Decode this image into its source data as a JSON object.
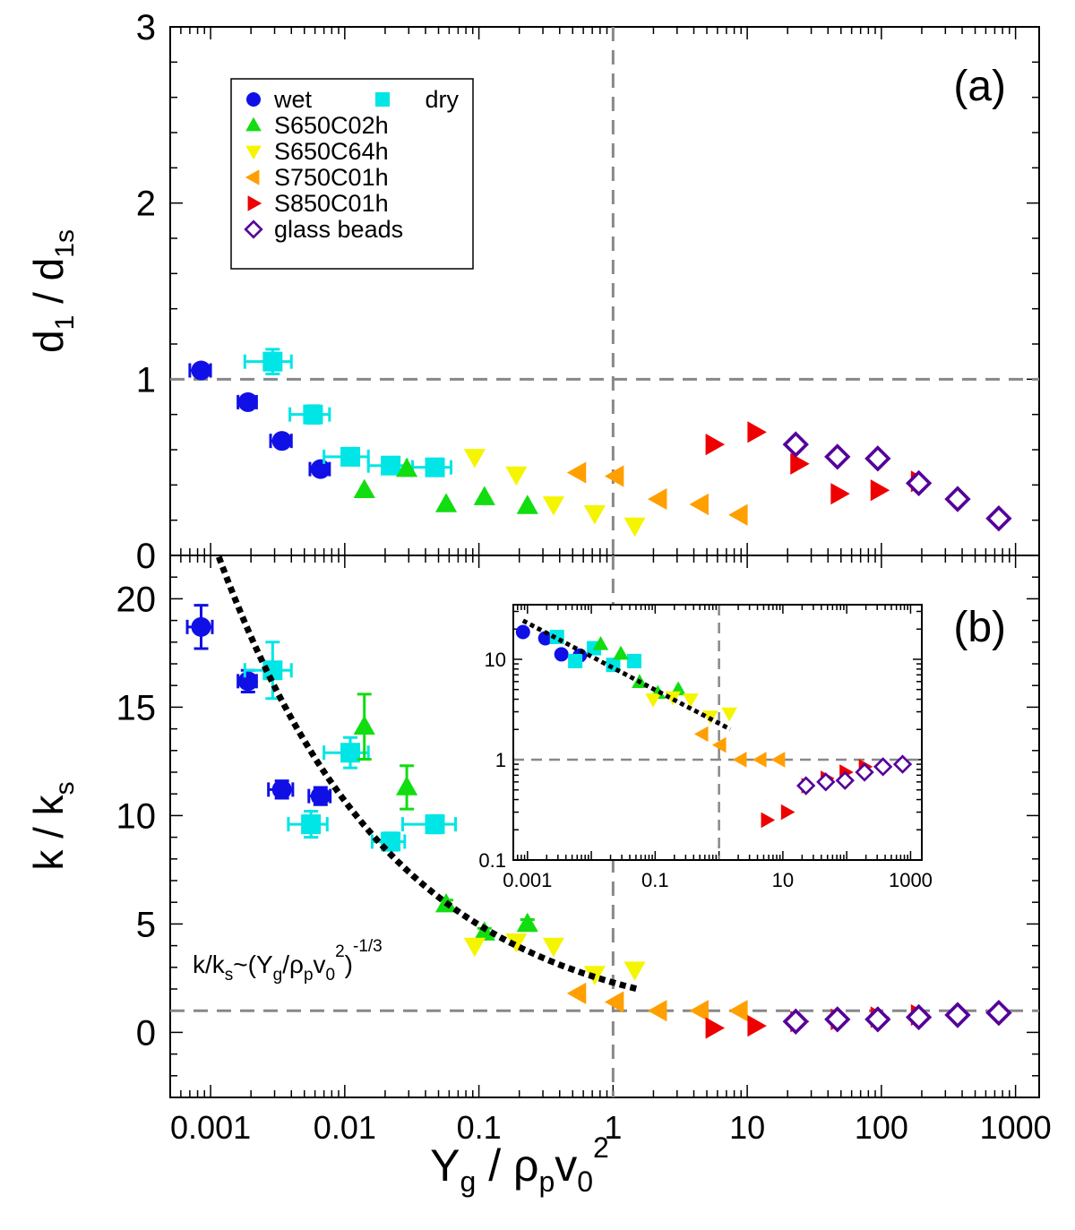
{
  "colors": {
    "wet": "#1010e6",
    "dry": "#00e5e5",
    "S650C02h": "#11dd11",
    "S650C64h": "#f5f500",
    "S750C01h": "#ff9f00",
    "S850C01h": "#ee0000",
    "glass beads": "#550099",
    "reference": "#888888"
  },
  "chart_data": [
    {
      "type": "scatter",
      "panel_label": "(a)",
      "ylabel": "d1 / d1s",
      "xscale": "log",
      "xlim": [
        0.0005,
        1500
      ],
      "ylim": [
        0,
        3
      ],
      "yticks": [
        "0",
        "1",
        "2",
        "3"
      ],
      "reference_lines": {
        "x": 1,
        "y": 1
      },
      "legend": {
        "placement": "top-left",
        "rows": [
          [
            "wet",
            "dry"
          ],
          [
            "S650C02h"
          ],
          [
            "S650C64h"
          ],
          [
            "S750C01h"
          ],
          [
            "S850C01h"
          ],
          [
            "glass beads"
          ]
        ]
      },
      "series": [
        {
          "name": "wet",
          "marker": "circle",
          "points": [
            [
              0.00085,
              1.05,
              0.00015,
              0.03
            ],
            [
              0.0019,
              0.87,
              0.0003,
              0.03
            ],
            [
              0.0034,
              0.65,
              0.0006,
              0.03
            ],
            [
              0.0066,
              0.49,
              0.0011,
              0.03
            ]
          ]
        },
        {
          "name": "dry",
          "marker": "square",
          "points": [
            [
              0.0029,
              1.1,
              0.0011,
              0.07
            ],
            [
              0.0058,
              0.8,
              0.0019,
              0.05
            ],
            [
              0.011,
              0.56,
              0.004,
              0.04
            ],
            [
              0.022,
              0.51,
              0.007,
              0.04
            ],
            [
              0.047,
              0.5,
              0.015,
              0.04
            ]
          ]
        },
        {
          "name": "S650C02h",
          "marker": "triangle-up",
          "points": [
            [
              0.014,
              0.37
            ],
            [
              0.029,
              0.49
            ],
            [
              0.057,
              0.29
            ],
            [
              0.11,
              0.33
            ],
            [
              0.23,
              0.28
            ]
          ]
        },
        {
          "name": "S650C64h",
          "marker": "triangle-down",
          "points": [
            [
              0.093,
              0.56
            ],
            [
              0.19,
              0.46
            ],
            [
              0.36,
              0.29
            ],
            [
              0.73,
              0.24
            ],
            [
              1.45,
              0.17
            ]
          ]
        },
        {
          "name": "S750C01h",
          "marker": "triangle-left",
          "points": [
            [
              0.55,
              0.47
            ],
            [
              1.05,
              0.45
            ],
            [
              2.2,
              0.32
            ],
            [
              4.5,
              0.29
            ],
            [
              8.8,
              0.23
            ]
          ]
        },
        {
          "name": "S850C01h",
          "marker": "triangle-right",
          "points": [
            [
              5.6,
              0.63
            ],
            [
              11.5,
              0.7
            ],
            [
              24,
              0.52
            ],
            [
              48,
              0.35
            ],
            [
              95,
              0.37
            ],
            [
              190,
              0.42
            ]
          ]
        },
        {
          "name": "glass beads",
          "marker": "diamond-open",
          "points": [
            [
              23,
              0.63
            ],
            [
              47,
              0.56
            ],
            [
              94,
              0.55
            ],
            [
              190,
              0.41
            ],
            [
              370,
              0.32
            ],
            [
              750,
              0.21
            ]
          ]
        }
      ]
    },
    {
      "type": "scatter",
      "panel_label": "(b)",
      "ylabel": "k / ks",
      "xlabel": "Yg / ρpv0²",
      "xscale": "log",
      "xlim": [
        0.0005,
        1500
      ],
      "ylim": [
        -3,
        22
      ],
      "xticks": [
        "0.001",
        "0.01",
        "0.1",
        "1",
        "10",
        "100",
        "1000"
      ],
      "yticks": [
        "0",
        "5",
        "10",
        "15",
        "20"
      ],
      "reference_lines": {
        "x": 1,
        "y": 1
      },
      "fit_annotation": "k/ks~(Yg/ρpv0²)^-1/3",
      "fit": {
        "exponent": -0.3333,
        "prefactor": 2.3,
        "x_range": [
          0.00085,
          1.5
        ]
      },
      "series": [
        {
          "name": "wet",
          "marker": "circle",
          "points": [
            [
              0.00085,
              18.7,
              0.00018,
              1.0
            ],
            [
              0.0019,
              16.2,
              0.0003,
              0.5
            ],
            [
              0.0034,
              11.2,
              0.0007,
              0.4
            ],
            [
              0.0066,
              10.9,
              0.0012,
              0.4
            ]
          ]
        },
        {
          "name": "dry",
          "marker": "square",
          "points": [
            [
              0.0029,
              16.7,
              0.0011,
              1.3
            ],
            [
              0.0056,
              9.6,
              0.0018,
              0.6
            ],
            [
              0.011,
              12.9,
              0.004,
              0.7
            ],
            [
              0.022,
              8.8,
              0.006,
              0.4
            ],
            [
              0.047,
              9.6,
              0.02,
              0.4
            ]
          ]
        },
        {
          "name": "S650C02h",
          "marker": "triangle-up",
          "points": [
            [
              0.014,
              14.1,
              0,
              1.5
            ],
            [
              0.029,
              11.3,
              0,
              1.0
            ],
            [
              0.057,
              5.9,
              0,
              0.2
            ],
            [
              0.11,
              4.6,
              0,
              0.2
            ],
            [
              0.23,
              5.0,
              0,
              0.2
            ]
          ]
        },
        {
          "name": "S650C64h",
          "marker": "triangle-down",
          "points": [
            [
              0.093,
              4.0
            ],
            [
              0.19,
              4.2
            ],
            [
              0.36,
              4.0
            ],
            [
              0.73,
              2.7
            ],
            [
              1.45,
              2.9
            ]
          ]
        },
        {
          "name": "S750C01h",
          "marker": "triangle-left",
          "points": [
            [
              0.55,
              1.8
            ],
            [
              1.05,
              1.4
            ],
            [
              2.2,
              1.0
            ],
            [
              4.5,
              1.0
            ],
            [
              8.8,
              1.0
            ]
          ]
        },
        {
          "name": "S850C01h",
          "marker": "triangle-right",
          "points": [
            [
              5.6,
              0.2
            ],
            [
              11.5,
              0.3
            ],
            [
              24,
              0.5
            ],
            [
              48,
              0.6
            ],
            [
              95,
              0.7
            ],
            [
              190,
              0.8
            ]
          ]
        },
        {
          "name": "glass beads",
          "marker": "diamond-open",
          "points": [
            [
              23,
              0.5
            ],
            [
              47,
              0.6
            ],
            [
              94,
              0.6
            ],
            [
              190,
              0.7
            ],
            [
              370,
              0.8
            ],
            [
              750,
              0.9
            ]
          ]
        }
      ]
    },
    {
      "type": "scatter",
      "panel_label": "inset",
      "xscale": "log",
      "yscale": "log",
      "xlim": [
        0.0006,
        1500
      ],
      "ylim": [
        0.1,
        35
      ],
      "xticks": [
        "0.001",
        "0.1",
        "10",
        "1000"
      ],
      "yticks": [
        "0.1",
        "1",
        "10"
      ],
      "reference_lines": {
        "x": 1,
        "y": 1
      },
      "fit": {
        "exponent": -0.3333,
        "prefactor": 2.3,
        "x_range": [
          0.00085,
          1.5
        ]
      },
      "series": [
        {
          "name": "wet",
          "marker": "circle",
          "points": [
            [
              0.00085,
              18.7
            ],
            [
              0.0019,
              16.2
            ],
            [
              0.0034,
              11.2
            ],
            [
              0.0066,
              10.9
            ]
          ]
        },
        {
          "name": "dry",
          "marker": "square",
          "points": [
            [
              0.0029,
              16.7
            ],
            [
              0.0056,
              9.6
            ],
            [
              0.011,
              12.9
            ],
            [
              0.022,
              8.8
            ],
            [
              0.047,
              9.6
            ]
          ]
        },
        {
          "name": "S650C02h",
          "marker": "triangle-up",
          "points": [
            [
              0.014,
              14.1
            ],
            [
              0.029,
              11.3
            ],
            [
              0.057,
              5.9
            ],
            [
              0.11,
              4.6
            ],
            [
              0.23,
              5.0
            ]
          ]
        },
        {
          "name": "S650C64h",
          "marker": "triangle-down",
          "points": [
            [
              0.093,
              4.0
            ],
            [
              0.19,
              4.2
            ],
            [
              0.36,
              4.0
            ],
            [
              0.73,
              2.7
            ],
            [
              1.45,
              2.9
            ]
          ]
        },
        {
          "name": "S750C01h",
          "marker": "triangle-left",
          "points": [
            [
              0.55,
              1.8
            ],
            [
              1.05,
              1.4
            ],
            [
              2.2,
              1.0
            ],
            [
              4.5,
              1.0
            ],
            [
              8.8,
              1.0
            ]
          ]
        },
        {
          "name": "S850C01h",
          "marker": "triangle-right",
          "points": [
            [
              5.6,
              0.25
            ],
            [
              11.5,
              0.3
            ],
            [
              24,
              0.55
            ],
            [
              48,
              0.65
            ],
            [
              95,
              0.75
            ],
            [
              190,
              0.85
            ]
          ]
        },
        {
          "name": "glass beads",
          "marker": "diamond-open",
          "points": [
            [
              23,
              0.55
            ],
            [
              47,
              0.6
            ],
            [
              94,
              0.62
            ],
            [
              190,
              0.75
            ],
            [
              370,
              0.85
            ],
            [
              750,
              0.9
            ]
          ]
        }
      ]
    }
  ]
}
